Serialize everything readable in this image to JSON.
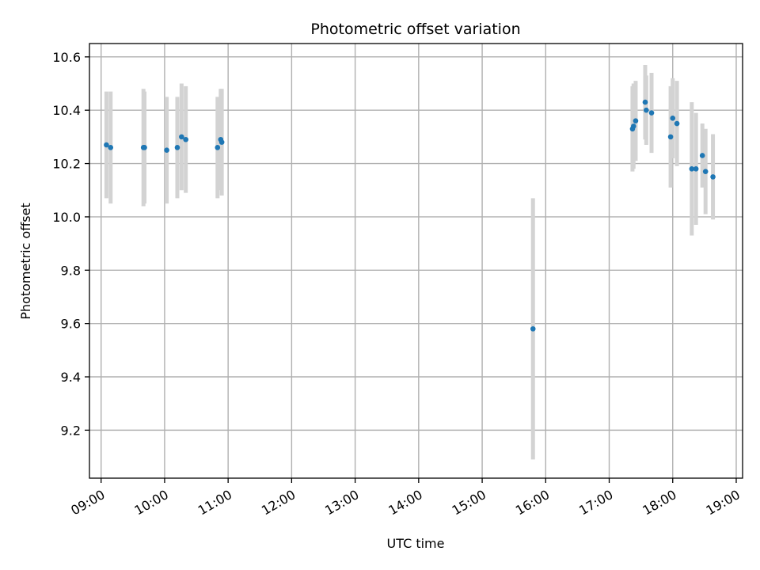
{
  "chart_data": {
    "type": "scatter",
    "title": "Photometric offset variation",
    "xlabel": "UTC time",
    "ylabel": "Photometric offset",
    "x_ticks": [
      "09:00",
      "10:00",
      "11:00",
      "12:00",
      "13:00",
      "14:00",
      "15:00",
      "16:00",
      "17:00",
      "18:00",
      "19:00"
    ],
    "y_ticks": [
      "9.2",
      "9.4",
      "9.6",
      "9.8",
      "10.0",
      "10.2",
      "10.4",
      "10.6"
    ],
    "xlim": [
      "08:49",
      "19:06"
    ],
    "ylim": [
      9.02,
      10.65
    ],
    "grid": true,
    "point_color": "#1f77b4",
    "errorbar_color": "#d3d3d3",
    "points": [
      {
        "x": "09:05",
        "y": 10.27,
        "err": 0.2
      },
      {
        "x": "09:09",
        "y": 10.26,
        "err": 0.21
      },
      {
        "x": "09:40",
        "y": 10.26,
        "err": 0.22
      },
      {
        "x": "09:41",
        "y": 10.26,
        "err": 0.21
      },
      {
        "x": "10:02",
        "y": 10.25,
        "err": 0.2
      },
      {
        "x": "10:12",
        "y": 10.26,
        "err": 0.19
      },
      {
        "x": "10:16",
        "y": 10.3,
        "err": 0.2
      },
      {
        "x": "10:20",
        "y": 10.29,
        "err": 0.2
      },
      {
        "x": "10:50",
        "y": 10.26,
        "err": 0.19
      },
      {
        "x": "10:53",
        "y": 10.29,
        "err": 0.19
      },
      {
        "x": "10:54",
        "y": 10.28,
        "err": 0.2
      },
      {
        "x": "15:48",
        "y": 9.58,
        "err": 0.49
      },
      {
        "x": "17:22",
        "y": 10.33,
        "err": 0.16
      },
      {
        "x": "17:23",
        "y": 10.34,
        "err": 0.16
      },
      {
        "x": "17:25",
        "y": 10.36,
        "err": 0.15
      },
      {
        "x": "17:34",
        "y": 10.43,
        "err": 0.14
      },
      {
        "x": "17:35",
        "y": 10.4,
        "err": 0.13
      },
      {
        "x": "17:40",
        "y": 10.39,
        "err": 0.15
      },
      {
        "x": "17:58",
        "y": 10.3,
        "err": 0.19
      },
      {
        "x": "18:00",
        "y": 10.37,
        "err": 0.15
      },
      {
        "x": "18:04",
        "y": 10.35,
        "err": 0.16
      },
      {
        "x": "18:18",
        "y": 10.18,
        "err": 0.25
      },
      {
        "x": "18:22",
        "y": 10.18,
        "err": 0.21
      },
      {
        "x": "18:28",
        "y": 10.23,
        "err": 0.12
      },
      {
        "x": "18:31",
        "y": 10.17,
        "err": 0.16
      },
      {
        "x": "18:38",
        "y": 10.15,
        "err": 0.16
      }
    ]
  }
}
